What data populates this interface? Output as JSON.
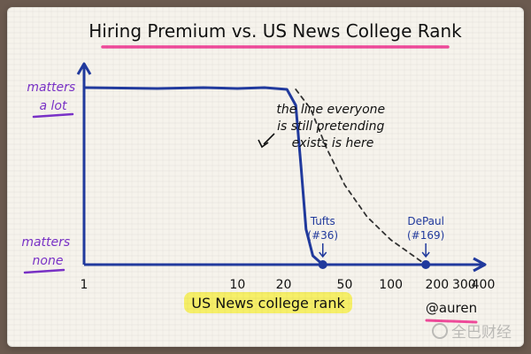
{
  "chart_data": {
    "type": "line",
    "title": "Hiring Premium vs. US News College Rank",
    "xlabel": "US News college rank",
    "ylabel_top": "matters a lot",
    "ylabel_bottom": "matters none",
    "x_scale": "log",
    "xlim": [
      1,
      400
    ],
    "ylim": [
      0,
      1
    ],
    "x_ticks": [
      {
        "value": 1,
        "label": "1"
      },
      {
        "value": 10,
        "label": "10"
      },
      {
        "value": 20,
        "label": "20"
      },
      {
        "value": 50,
        "label": "50"
      },
      {
        "value": 100,
        "label": "100"
      },
      {
        "value": 200,
        "label": "200"
      },
      {
        "value": 300,
        "label": "300"
      },
      {
        "value": 400,
        "label": "400"
      }
    ],
    "series": [
      {
        "style": "solid",
        "color": "#213a9e",
        "points": [
          {
            "x": 1,
            "y": 1.0
          },
          {
            "x": 3,
            "y": 0.995
          },
          {
            "x": 6,
            "y": 1.0
          },
          {
            "x": 10,
            "y": 0.995
          },
          {
            "x": 15,
            "y": 1.0
          },
          {
            "x": 21,
            "y": 0.99
          },
          {
            "x": 24,
            "y": 0.9
          },
          {
            "x": 26,
            "y": 0.55
          },
          {
            "x": 28,
            "y": 0.2
          },
          {
            "x": 31,
            "y": 0.05
          },
          {
            "x": 36,
            "y": 0.0
          },
          {
            "x": 60,
            "y": 0.0
          },
          {
            "x": 120,
            "y": 0.0
          },
          {
            "x": 169,
            "y": 0.0
          },
          {
            "x": 400,
            "y": 0.0
          }
        ]
      },
      {
        "style": "dashed",
        "color": "#333333",
        "points": [
          {
            "x": 24,
            "y": 0.99
          },
          {
            "x": 30,
            "y": 0.88
          },
          {
            "x": 38,
            "y": 0.66
          },
          {
            "x": 50,
            "y": 0.45
          },
          {
            "x": 70,
            "y": 0.27
          },
          {
            "x": 100,
            "y": 0.14
          },
          {
            "x": 140,
            "y": 0.05
          },
          {
            "x": 169,
            "y": 0.0
          }
        ]
      }
    ],
    "markers": [
      {
        "label": "Tufts",
        "sublabel": "(#36)",
        "x": 36,
        "y": 0
      },
      {
        "label": "DePaul",
        "sublabel": "(#169)",
        "x": 169,
        "y": 0
      }
    ],
    "annotation": {
      "lines": [
        "the line everyone",
        "is still pretending",
        "exists is here"
      ]
    },
    "grid": false,
    "legend": "none"
  },
  "credit": "@auren",
  "watermark": "全巴财经",
  "colors": {
    "blue_ink": "#213a9e",
    "purple_marker": "#7a32c8",
    "pink_highlight": "#ef4a9a",
    "yellow_highlight": "#f6ee5a",
    "black_ink": "#111111"
  }
}
